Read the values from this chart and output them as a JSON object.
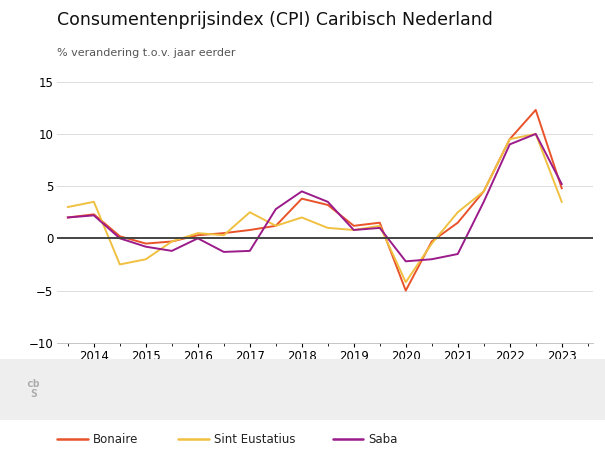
{
  "title": "Consumentenprijsindex (CPI) Caribisch Nederland",
  "subtitle": "% verandering t.o.v. jaar eerder",
  "ylim": [
    -10,
    15
  ],
  "yticks": [
    -10,
    -5,
    0,
    5,
    10,
    15
  ],
  "xlim": [
    2013.3,
    2023.6
  ],
  "xticks": [
    2014,
    2015,
    2016,
    2017,
    2018,
    2019,
    2020,
    2021,
    2022,
    2023
  ],
  "years": [
    2013.5,
    2014.0,
    2014.5,
    2015.0,
    2015.5,
    2016.0,
    2016.5,
    2017.0,
    2017.5,
    2018.0,
    2018.25,
    2018.5,
    2019.0,
    2019.5,
    2020.0,
    2020.5,
    2021.0,
    2021.5,
    2022.0,
    2022.5,
    2023.0
  ],
  "bonaire": [
    2.0,
    2.3,
    0.2,
    -0.5,
    -0.3,
    0.3,
    0.5,
    0.8,
    1.2,
    3.8,
    3.5,
    3.2,
    1.2,
    1.5,
    -5.0,
    -0.3,
    1.5,
    4.5,
    9.5,
    12.3,
    4.8
  ],
  "sint_eustatius": [
    3.0,
    3.5,
    -2.5,
    -2.0,
    -0.3,
    0.5,
    0.3,
    2.5,
    1.2,
    2.0,
    1.5,
    1.0,
    0.8,
    1.2,
    -4.2,
    -0.5,
    2.5,
    4.5,
    9.5,
    10.0,
    3.5
  ],
  "saba": [
    2.0,
    2.2,
    0.0,
    -0.8,
    -1.2,
    0.0,
    -1.3,
    -1.2,
    2.8,
    4.5,
    4.0,
    3.5,
    0.8,
    1.0,
    -2.2,
    -2.0,
    -1.5,
    3.5,
    9.0,
    10.0,
    5.2
  ],
  "bonaire_color": "#E8532A",
  "sint_eustatius_color": "#F0C040",
  "saba_color": "#9B1B8A",
  "zero_line_color": "#444444",
  "grid_color": "#dddddd",
  "background_color": "#ffffff",
  "footer_bg": "#eeeeee",
  "legend_labels": [
    "Bonaire",
    "Sint Eustatius",
    "Saba"
  ],
  "title_fontsize": 12.5,
  "subtitle_fontsize": 8,
  "tick_fontsize": 8.5
}
